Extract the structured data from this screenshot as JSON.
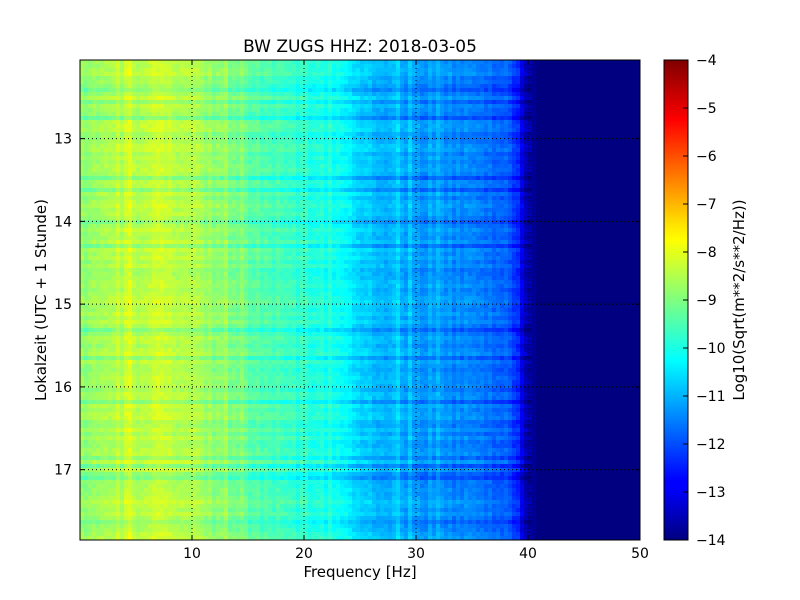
{
  "chart_data": {
    "type": "heatmap",
    "title": "BW ZUGS HHZ: 2018-03-05",
    "xlabel": "Frequency [Hz]",
    "ylabel": "Lokalzeit (UTC + 1 Stunde)",
    "xlim": [
      0,
      50
    ],
    "ylim": [
      12.05,
      17.85
    ],
    "y_inverted": true,
    "xticks": [
      10,
      20,
      30,
      40,
      50
    ],
    "yticks": [
      13,
      14,
      15,
      16,
      17
    ],
    "grid": true,
    "colormap": "jet",
    "colorbar": {
      "label": "Log10(Sqrt(m**2/s**2/Hz))",
      "range": [
        -14,
        -4
      ],
      "ticks": [
        -4,
        -5,
        -6,
        -7,
        -8,
        -9,
        -10,
        -11,
        -12,
        -13,
        -14
      ]
    },
    "spectrum_profile": {
      "frequency_hz": [
        0,
        2,
        4,
        6,
        8,
        10,
        12,
        14,
        16,
        18,
        20,
        22,
        24,
        25,
        26,
        28,
        30,
        32,
        34,
        36,
        38,
        39,
        40,
        41,
        42,
        45,
        50
      ],
      "log10_amplitude": [
        -8.8,
        -8.7,
        -8.6,
        -8.3,
        -8.3,
        -8.5,
        -8.8,
        -9.1,
        -9.4,
        -9.6,
        -9.8,
        -10.0,
        -10.3,
        -10.6,
        -10.8,
        -11.0,
        -11.2,
        -11.3,
        -11.4,
        -11.6,
        -11.8,
        -12.3,
        -13.6,
        -14.0,
        -14.0,
        -14.0,
        -14.0
      ]
    }
  }
}
